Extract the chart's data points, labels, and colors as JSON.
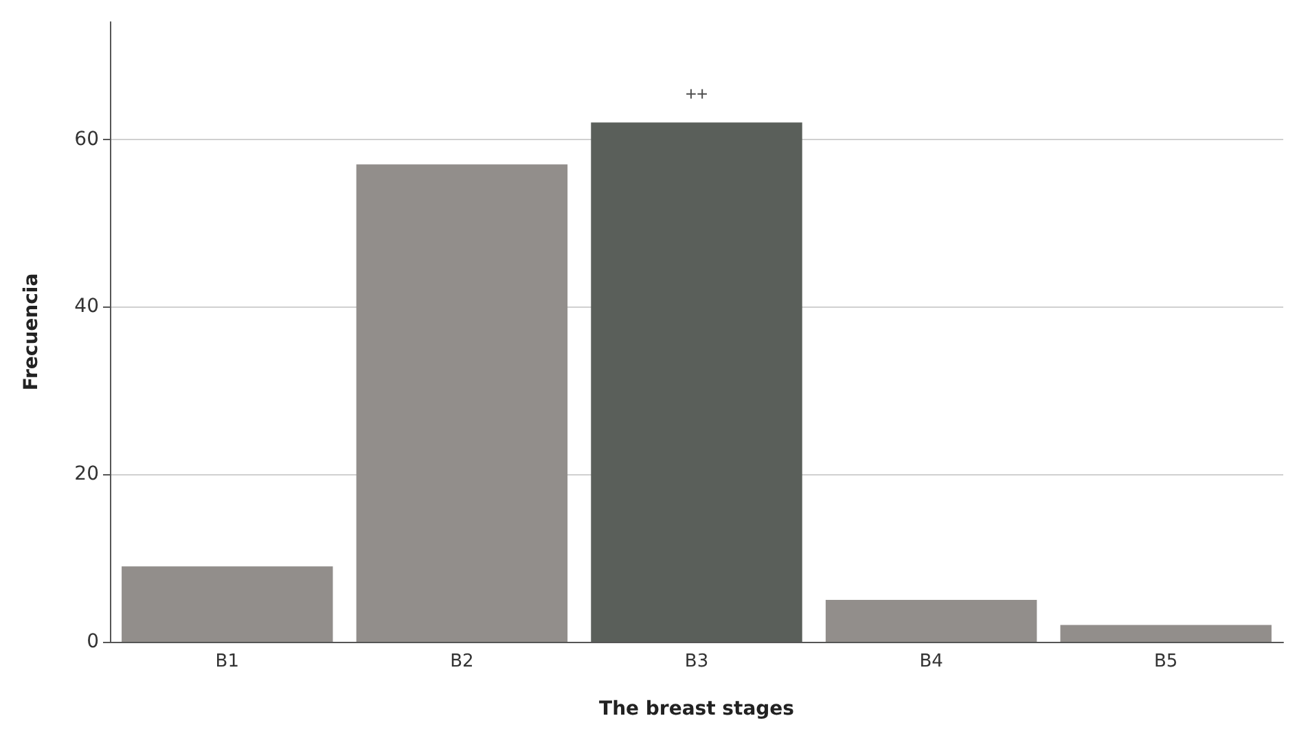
{
  "chart_data": {
    "type": "bar",
    "xlabel": "The breast stages",
    "ylabel": "Frecuencia",
    "categories": [
      "B1",
      "B2",
      "B3",
      "B4",
      "B5"
    ],
    "values": [
      9,
      57,
      62,
      5,
      2
    ],
    "colors": [
      "#928e8b",
      "#928e8b",
      "#5a5f5a",
      "#928e8b",
      "#928e8b"
    ],
    "ylim": [
      0,
      74
    ],
    "yticks": [
      0,
      20,
      40,
      60
    ],
    "grid": "y",
    "annotations": [
      {
        "text": "++",
        "x": "B3",
        "y": 62
      }
    ]
  }
}
